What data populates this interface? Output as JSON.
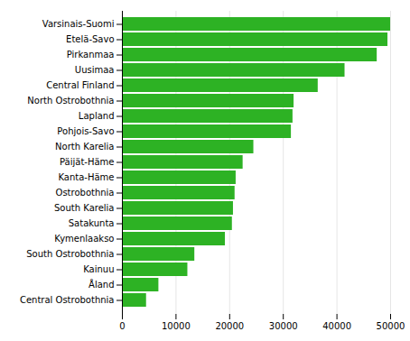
{
  "chart_data": {
    "type": "bar",
    "orientation": "horizontal",
    "categories": [
      "Central Ostrobothnia",
      "Åland",
      "Kainuu",
      "South Ostrobothnia",
      "Kymenlaakso",
      "Satakunta",
      "South Karelia",
      "Ostrobothnia",
      "Kanta-Häme",
      "Päijät-Häme",
      "North Karelia",
      "Pohjois-Savo",
      "Lapland",
      "North Ostrobothnia",
      "Central Finland",
      "Uusimaa",
      "Pirkanmaa",
      "Etelä-Savo",
      "Varsinais-Suomi"
    ],
    "values": [
      4500,
      6800,
      12200,
      13500,
      19200,
      20500,
      20700,
      21000,
      21200,
      22500,
      24500,
      31500,
      31800,
      32000,
      36500,
      41500,
      47500,
      49500,
      50000
    ],
    "color": "#2db224",
    "xlim": [
      0,
      50000
    ],
    "xticks": [
      0,
      10000,
      20000,
      30000,
      40000,
      50000
    ],
    "grid": true
  }
}
